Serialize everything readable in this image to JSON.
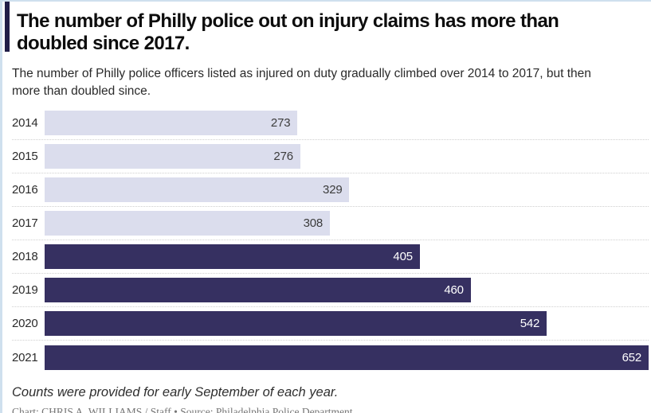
{
  "header": {
    "title": "The number of Philly police out on injury claims has more than doubled since 2017.",
    "subtitle": "The number of Philly police officers listed as injured on duty gradually climbed over 2014 to 2017, but then more than doubled since."
  },
  "chart_data": {
    "type": "bar",
    "orientation": "horizontal",
    "categories": [
      "2014",
      "2015",
      "2016",
      "2017",
      "2018",
      "2019",
      "2020",
      "2021"
    ],
    "values": [
      273,
      276,
      329,
      308,
      405,
      460,
      542,
      652
    ],
    "xlim": [
      0,
      652
    ],
    "bar_styles": [
      "light",
      "light",
      "light",
      "light",
      "dark",
      "dark",
      "dark",
      "dark"
    ],
    "grid": "dotted-row-separators",
    "legend": "none",
    "value_labels": "inside-end"
  },
  "colors": {
    "light_bar": "#dbdded",
    "dark_bar": "#363061",
    "light_bar_label": "#3c3c3c",
    "dark_bar_label": "#ffffff",
    "accent_left_bar": "#211d47",
    "frame_border": "#cfe0ee",
    "separator": "#cfcfcf"
  },
  "footer": {
    "note": "Counts were provided for early September of each year.",
    "credit": "Chart: CHRIS A. WILLIAMS / Staff • Source: Philadelphia Police Department"
  }
}
